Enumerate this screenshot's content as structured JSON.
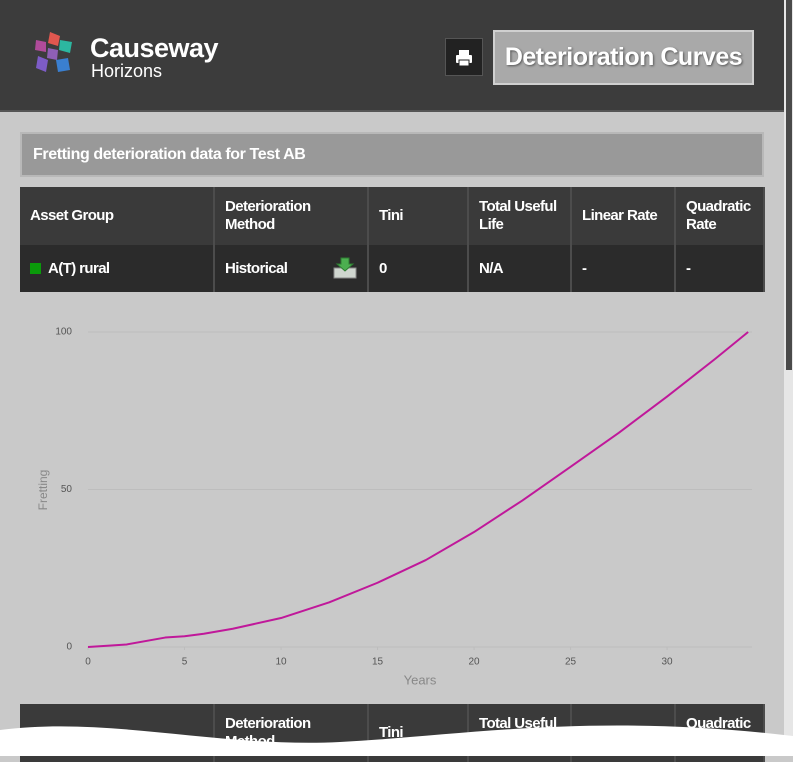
{
  "header": {
    "logo_line1": "Causeway",
    "logo_line2": "Horizons",
    "page_title": "Deterioration Curves"
  },
  "section_title": "Fretting deterioration data for Test AB",
  "table": {
    "header": [
      "Asset Group",
      "Deterioration Method",
      "Tini",
      "Total Useful Life",
      "Linear Rate",
      "Quadratic Rate"
    ],
    "rows": [
      [
        "A(T) rural",
        "Historical",
        "0",
        "N/A",
        "-",
        "-"
      ]
    ]
  },
  "chart_data": {
    "type": "line",
    "x_label": "Years",
    "y_label": "Fretting",
    "x": [
      0,
      2,
      4,
      5,
      6,
      7.5,
      10,
      12.5,
      15,
      17.5,
      20,
      22.5,
      25,
      27.5,
      30,
      32.5,
      34.2
    ],
    "series": [
      {
        "name": "A(T) rural",
        "color": "#c0189a",
        "values": [
          0,
          0.8,
          3.0,
          3.4,
          4.2,
          5.8,
          9.2,
          14.2,
          20.4,
          27.6,
          36.5,
          46.5,
          57.2,
          68,
          79.5,
          91.5,
          100
        ]
      }
    ],
    "xlim": [
      0,
      34.4
    ],
    "xticks": [
      0,
      5,
      10,
      15,
      20,
      25,
      30
    ],
    "ylim": [
      0,
      100
    ],
    "yticks": [
      0,
      50,
      100
    ],
    "grid": true
  }
}
